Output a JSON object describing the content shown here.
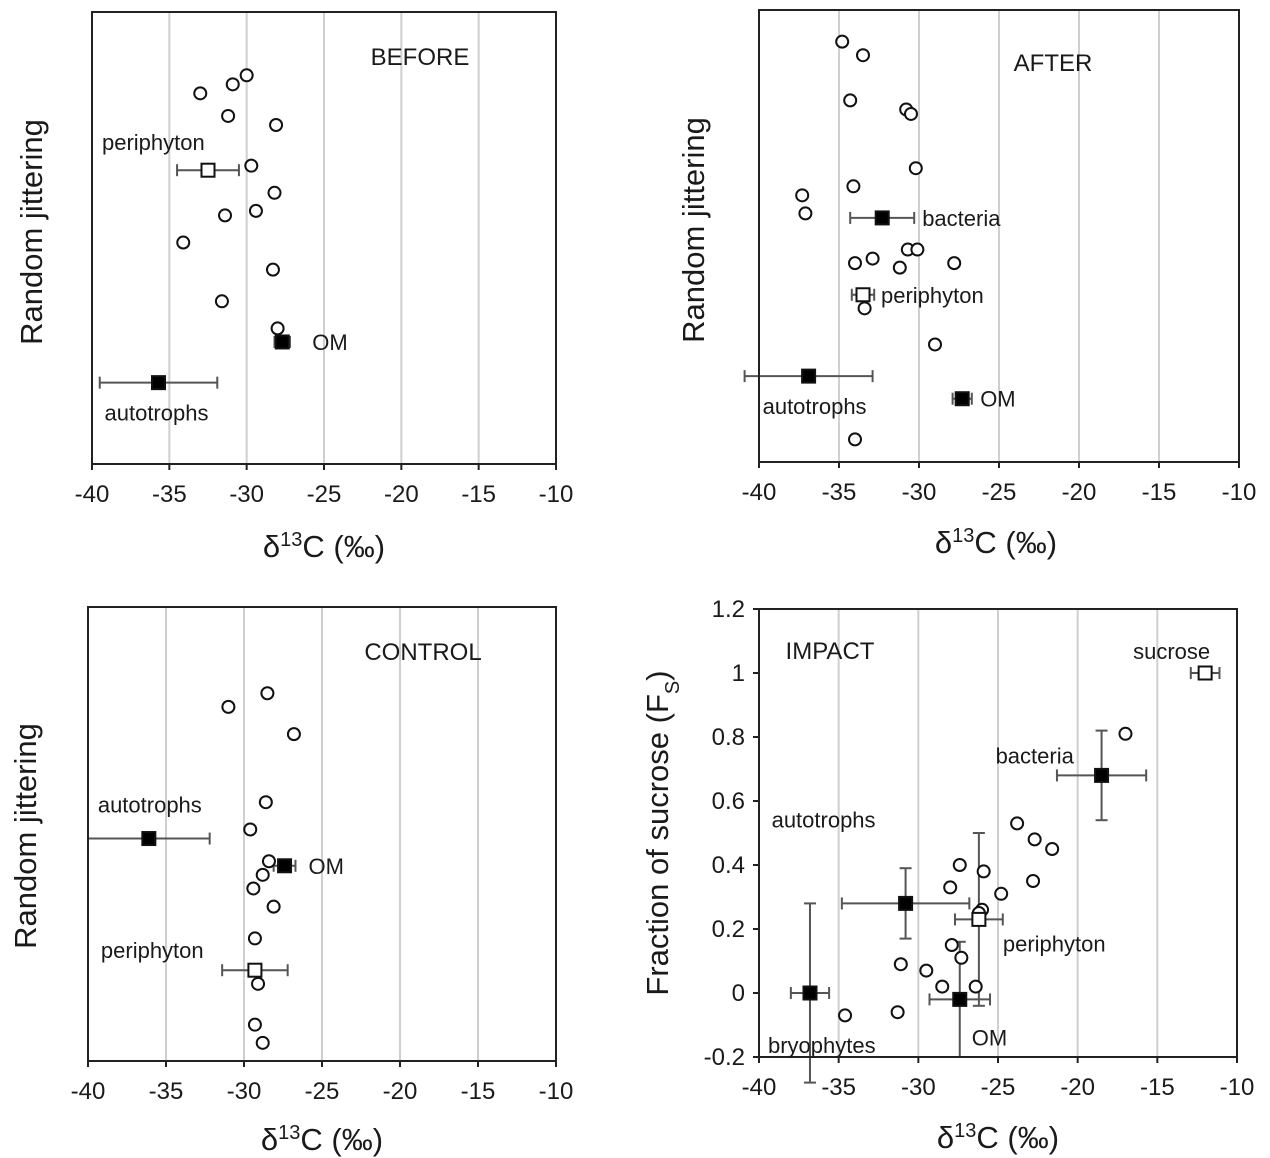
{
  "chart_data": [
    {
      "type": "scatter",
      "title": "BEFORE",
      "xlabel": "δ13C (‰)",
      "ylabel": "Random jittering",
      "xlim": [
        -40,
        -10
      ],
      "xticks": [
        -40,
        -35,
        -30,
        -25,
        -20,
        -15,
        -10
      ],
      "grid": "vertical",
      "consumers": [
        [
          -30,
          0.86
        ],
        [
          -30.9,
          0.84
        ],
        [
          -33,
          0.82
        ],
        [
          -31.2,
          0.77
        ],
        [
          -28.1,
          0.75
        ],
        [
          -29.7,
          0.66
        ],
        [
          -28.2,
          0.6
        ],
        [
          -31.4,
          0.55
        ],
        [
          -29.4,
          0.56
        ],
        [
          -34.1,
          0.49
        ],
        [
          -28.3,
          0.43
        ],
        [
          -31.6,
          0.36
        ],
        [
          -28,
          0.3
        ]
      ],
      "sources": [
        {
          "name": "periphyton",
          "x": -32.5,
          "y": 0.65,
          "xerr": 2,
          "filled": false
        },
        {
          "name": "OM",
          "x": -27.7,
          "y": 0.27,
          "xerr": 0.5,
          "filled": true
        },
        {
          "name": "autotrophs",
          "x": -35.7,
          "y": 0.18,
          "xerr": 3.8,
          "filled": true
        }
      ]
    },
    {
      "type": "scatter",
      "title": "AFTER",
      "xlabel": "δ13C (‰)",
      "ylabel": "Random jittering",
      "xlim": [
        -40,
        -10
      ],
      "xticks": [
        -40,
        -35,
        -30,
        -25,
        -20,
        -15,
        -10
      ],
      "grid": "vertical",
      "consumers": [
        [
          -34.8,
          0.93
        ],
        [
          -33.5,
          0.9
        ],
        [
          -34.3,
          0.8
        ],
        [
          -30.8,
          0.78
        ],
        [
          -30.5,
          0.77
        ],
        [
          -30.2,
          0.65
        ],
        [
          -34.1,
          0.61
        ],
        [
          -37.3,
          0.59
        ],
        [
          -37.1,
          0.55
        ],
        [
          -30.7,
          0.47
        ],
        [
          -30.1,
          0.47
        ],
        [
          -34,
          0.44
        ],
        [
          -32.9,
          0.45
        ],
        [
          -31.2,
          0.43
        ],
        [
          -27.8,
          0.44
        ],
        [
          -33.4,
          0.34
        ],
        [
          -29,
          0.26
        ],
        [
          -34,
          0.05
        ]
      ],
      "sources": [
        {
          "name": "bacteria",
          "x": -32.3,
          "y": 0.54,
          "xerr": 2,
          "filled": true
        },
        {
          "name": "periphyton",
          "x": -33.5,
          "y": 0.37,
          "xerr": 0.7,
          "filled": false
        },
        {
          "name": "autotrophs",
          "x": -36.9,
          "y": 0.19,
          "xerr": 4,
          "filled": true
        },
        {
          "name": "OM",
          "x": -27.3,
          "y": 0.14,
          "xerr": 0.6,
          "filled": true
        }
      ]
    },
    {
      "type": "scatter",
      "title": "CONTROL",
      "xlabel": "δ13C (‰)",
      "ylabel": "Random jittering",
      "xlim": [
        -40,
        -10
      ],
      "xticks": [
        -40,
        -35,
        -30,
        -25,
        -20,
        -15,
        -10
      ],
      "grid": "vertical",
      "consumers": [
        [
          -28.5,
          0.81
        ],
        [
          -31,
          0.78
        ],
        [
          -26.8,
          0.72
        ],
        [
          -28.6,
          0.57
        ],
        [
          -29.6,
          0.51
        ],
        [
          -28.4,
          0.44
        ],
        [
          -28.8,
          0.41
        ],
        [
          -29.4,
          0.38
        ],
        [
          -28.1,
          0.34
        ],
        [
          -29.3,
          0.27
        ],
        [
          -29.1,
          0.17
        ],
        [
          -29.3,
          0.08
        ],
        [
          -28.8,
          0.04
        ]
      ],
      "sources": [
        {
          "name": "autotrophs",
          "x": -36.1,
          "y": 0.49,
          "xerr": 3.9,
          "filled": true
        },
        {
          "name": "OM",
          "x": -27.4,
          "y": 0.43,
          "xerr": 0.7,
          "filled": true
        },
        {
          "name": "periphyton",
          "x": -29.3,
          "y": 0.2,
          "xerr": 2.1,
          "filled": false
        }
      ]
    },
    {
      "type": "scatter",
      "title": "IMPACT",
      "xlabel": "δ13C (‰)",
      "ylabel": "Fraction of sucrose (FS)",
      "xlim": [
        -40,
        -10
      ],
      "xticks": [
        -40,
        -35,
        -30,
        -25,
        -20,
        -15,
        -10
      ],
      "ylim": [
        -0.2,
        1.2
      ],
      "yticks": [
        "-0.2",
        "0",
        "0.2",
        "0.4",
        "0.6",
        "0.8",
        "1",
        "1.2"
      ],
      "grid": "vertical",
      "consumers": [
        [
          -17,
          0.81
        ],
        [
          -23.8,
          0.53
        ],
        [
          -22.7,
          0.48
        ],
        [
          -21.6,
          0.45
        ],
        [
          -27.4,
          0.4
        ],
        [
          -25.9,
          0.38
        ],
        [
          -22.8,
          0.35
        ],
        [
          -28,
          0.33
        ],
        [
          -24.8,
          0.31
        ],
        [
          -26,
          0.26
        ],
        [
          -26.2,
          0.25
        ],
        [
          -27.9,
          0.15
        ],
        [
          -27.3,
          0.11
        ],
        [
          -31.1,
          0.09
        ],
        [
          -29.5,
          0.07
        ],
        [
          -28.5,
          0.02
        ],
        [
          -26.4,
          0.02
        ],
        [
          -34.6,
          -0.07
        ],
        [
          -31.3,
          -0.06
        ]
      ],
      "sources": [
        {
          "name": "sucrose",
          "x": -12,
          "y": 1.0,
          "xerr": 0.9,
          "yerr": 0,
          "filled": false
        },
        {
          "name": "bacteria",
          "x": -18.5,
          "y": 0.68,
          "xerr": 2.8,
          "yerr": 0.14,
          "filled": true
        },
        {
          "name": "autotrophs",
          "x": -30.8,
          "y": 0.28,
          "xerr": 4,
          "yerr": 0.11,
          "filled": true
        },
        {
          "name": "periphyton",
          "x": -26.2,
          "y": 0.23,
          "xerr": 1.5,
          "yerr": 0.27,
          "filled": false
        },
        {
          "name": "bryophytes",
          "x": -36.8,
          "y": 0.0,
          "xerr": 1.2,
          "yerr": 0.28,
          "filled": true
        },
        {
          "name": "OM",
          "x": -27.4,
          "y": -0.02,
          "xerr": 1.9,
          "yerr": 0.18,
          "filled": true
        }
      ]
    }
  ]
}
